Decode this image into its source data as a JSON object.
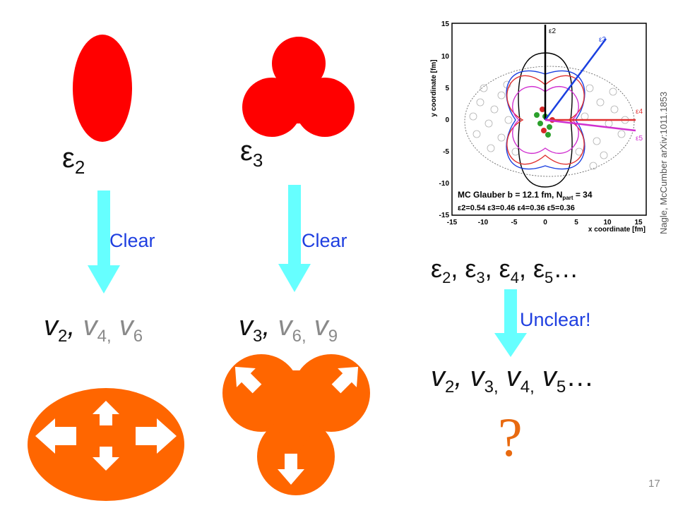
{
  "left": {
    "eps_symbol": "ε",
    "eps_sub": "2",
    "arrow_label": "Clear",
    "v_main": "v",
    "v_main_sub": "2",
    "v_comma": ", ",
    "v_h1": "v",
    "v_h1_sub": "4,",
    "v_h2": " v",
    "v_h2_sub": "6"
  },
  "middle": {
    "eps_symbol": "ε",
    "eps_sub": "3",
    "arrow_label": "Clear",
    "v_main": "v",
    "v_main_sub": "3",
    "v_comma": ", ",
    "v_h1": "v",
    "v_h1_sub": "6,",
    "v_h2": " v",
    "v_h2_sub": "9"
  },
  "right": {
    "plot": {
      "y_title": "y coordinate [fm]",
      "x_title": "x coordinate [fm]",
      "y_ticks": [
        "15",
        "10",
        "5",
        "0",
        "-5",
        "-10",
        "-15"
      ],
      "x_ticks": [
        "-15",
        "-10",
        "-5",
        "0",
        "5",
        "10",
        "15"
      ],
      "labels": {
        "e2": "ε2",
        "e3": "ε3",
        "e4": "ε4",
        "e5": "ε5"
      },
      "legend_line1": "MC Glauber b = 12.1 fm, N",
      "legend_line1_sub": "part",
      "legend_line1_tail": " = 34",
      "legend_line2": "ε2=0.54 ε3=0.46 ε4=0.36 ε5=0.36",
      "colors": {
        "e2": "#000000",
        "e3": "#1a3fe0",
        "e4": "#e03030",
        "e5": "#d030d0"
      }
    },
    "credit": "Nagle, McCumber arXiv:1011.1853",
    "eps_line": {
      "p1": "ε",
      "s1": "2",
      "c1": ", ",
      "p2": "ε",
      "s2": "3",
      "c2": ", ",
      "p3": "ε",
      "s3": "4",
      "c3": ", ",
      "p4": "ε",
      "s4": "5",
      "tail": "…"
    },
    "arrow_label": "Unclear!",
    "v_line": {
      "p1": "v",
      "s1": "2",
      "c1": ", ",
      "p2": "v",
      "s2": "3,",
      "c2": " ",
      "p3": "v",
      "s3": "4,",
      "c3": " ",
      "p4": "v",
      "s4": "5",
      "tail": "…"
    },
    "question": "?"
  },
  "page_number": "17",
  "colors": {
    "shape_red": "#ff0000",
    "flow_orange": "#ff6600",
    "arrow_cyan": "#66ffff",
    "label_blue": "#1f3fe0"
  }
}
